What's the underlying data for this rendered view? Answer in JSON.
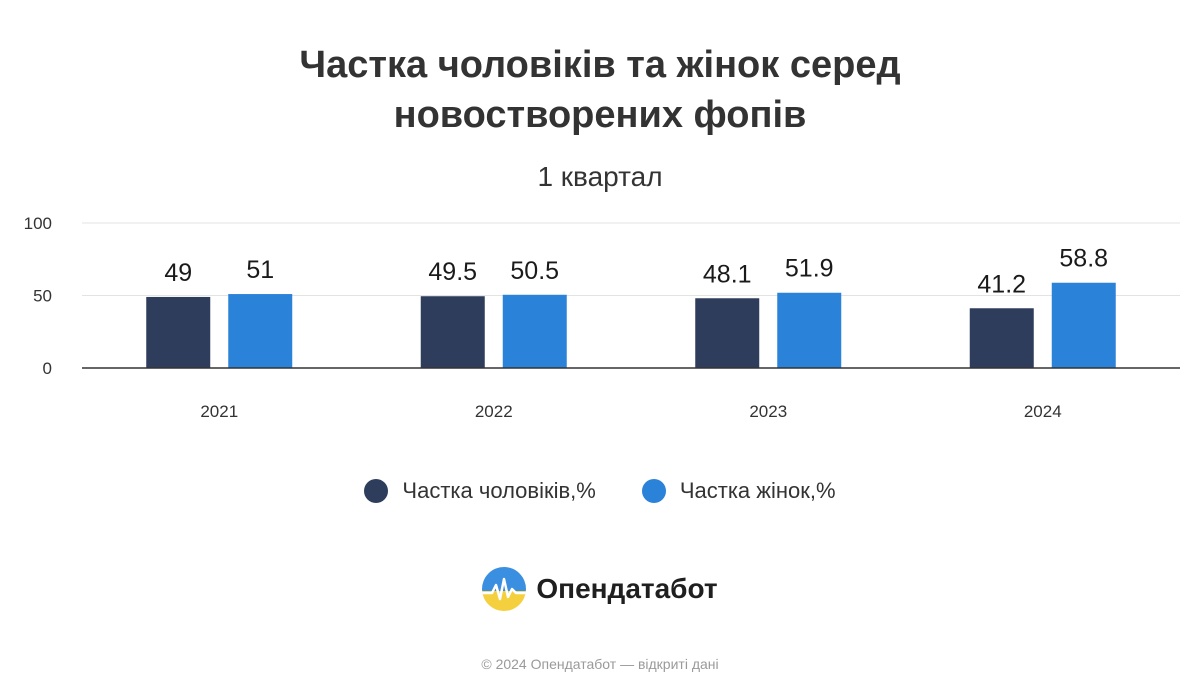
{
  "header": {
    "title_line1": "Частка чоловіків та жінок серед",
    "title_line2": "новостворених фопів",
    "subtitle": "1 квартал"
  },
  "chart_data": {
    "type": "bar",
    "categories": [
      "2021",
      "2022",
      "2023",
      "2024"
    ],
    "series": [
      {
        "name": "Частка чоловіків,%",
        "values": [
          49,
          49.5,
          48.1,
          41.2
        ],
        "color": "#2e3d5c"
      },
      {
        "name": "Частка жінок,%",
        "values": [
          51,
          50.5,
          51.9,
          58.8
        ],
        "color": "#2b82d9"
      }
    ],
    "ylim": [
      0,
      100
    ],
    "yticks": [
      0,
      50,
      100
    ],
    "grid": true,
    "legend_position": "bottom"
  },
  "legend": {
    "men_label": "Частка чоловіків,%",
    "women_label": "Частка жінок,%"
  },
  "brand": {
    "name": "Опендатабот",
    "logo_icon": "opendatabot-logo-icon"
  },
  "footer": {
    "text": "© 2024 Опендатабот — відкриті дані"
  }
}
